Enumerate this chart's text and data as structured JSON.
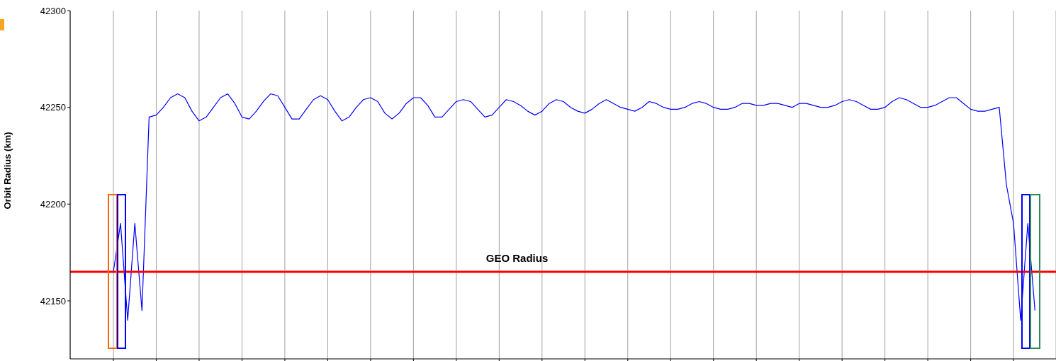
{
  "chart_data": {
    "type": "line",
    "ylabel": "Orbit Radius (km)",
    "categories": [
      null,
      null,
      null,
      null,
      null,
      null,
      null,
      null,
      null,
      null,
      null,
      null,
      null,
      null,
      null,
      null,
      null,
      null,
      null,
      null,
      null,
      null,
      null,
      null,
      null,
      null,
      null,
      null,
      null,
      null,
      null,
      null,
      null,
      null,
      null,
      null,
      null,
      null,
      null,
      null,
      null,
      null,
      null,
      null,
      null,
      null,
      null,
      null,
      null,
      null,
      null,
      null,
      null,
      null,
      null,
      null,
      null,
      null,
      null,
      null,
      null,
      null,
      null,
      null,
      null,
      null,
      null,
      null,
      null,
      null,
      null,
      null,
      null,
      null,
      null,
      null,
      null,
      null,
      null,
      null,
      null,
      null,
      null,
      null,
      null,
      null,
      null,
      null,
      null,
      null,
      null,
      null,
      null,
      null,
      null,
      null,
      null,
      null,
      null,
      null,
      null,
      null,
      null,
      null,
      null,
      null,
      null,
      null,
      null,
      null,
      null,
      null,
      null,
      null,
      null,
      null,
      null,
      null,
      null,
      null,
      null,
      null,
      null,
      null,
      null,
      null,
      null,
      null,
      null,
      null
    ],
    "ylim": [
      42120,
      42300
    ],
    "yticks": [
      42150,
      42200,
      42250,
      42300
    ],
    "grid": "x",
    "line_style": "solid",
    "series": [
      {
        "color": "#0000ff",
        "values": [
          42165,
          42190,
          42140,
          42190,
          42145,
          42245,
          42246,
          42250,
          42255,
          42257,
          42255,
          42248,
          42243,
          42245,
          42250,
          42255,
          42257,
          42252,
          42245,
          42244,
          42248,
          42253,
          42257,
          42256,
          42250,
          42244,
          42244,
          42249,
          42254,
          42256,
          42254,
          42248,
          42243,
          42245,
          42250,
          42254,
          42255,
          42253,
          42247,
          42244,
          42247,
          42252,
          42255,
          42255,
          42251,
          42245,
          42245,
          42249,
          42253,
          42254,
          42253,
          42249,
          42245,
          42246,
          42250,
          42254,
          42253,
          42251,
          42248,
          42246,
          42248,
          42252,
          42254,
          42253,
          42250,
          42248,
          42247,
          42249,
          42252,
          42254,
          42252,
          42250,
          42249,
          42248,
          42250,
          42253,
          42252,
          42250,
          42249,
          42249,
          42250,
          42252,
          42253,
          42252,
          42250,
          42249,
          42249,
          42250,
          42252,
          42252,
          42251,
          42251,
          42252,
          42252,
          42251,
          42250,
          42252,
          42252,
          42251,
          42250,
          42250,
          42251,
          42253,
          42254,
          42253,
          42251,
          42249,
          42249,
          42250,
          42253,
          42255,
          42254,
          42252,
          42250,
          42250,
          42251,
          42253,
          42255,
          42255,
          42252,
          42249,
          42248,
          42248,
          42249,
          42250,
          42210,
          42190,
          42140,
          42190,
          42145
        ]
      }
    ],
    "ref_lines": [
      {
        "axis": "y",
        "value": 42165,
        "label": "GEO Radius",
        "color": "#ff0000",
        "line_style": "solid"
      }
    ]
  }
}
